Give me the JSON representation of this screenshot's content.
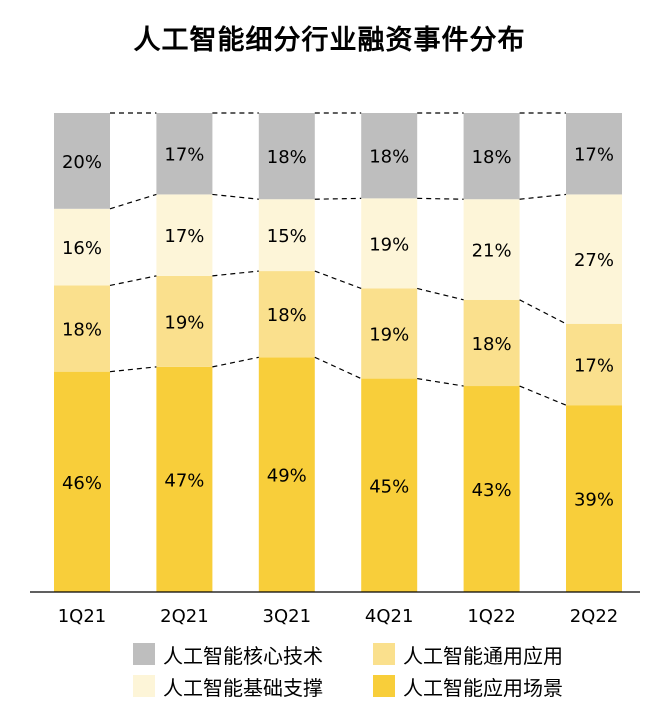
{
  "chart_data": {
    "type": "bar",
    "stacked": true,
    "percent": true,
    "title": "人工智能细分行业融资事件分布",
    "categories": [
      "1Q21",
      "2Q21",
      "3Q21",
      "4Q21",
      "1Q22",
      "2Q22"
    ],
    "series": [
      {
        "name": "人工智能应用场景",
        "color": "#F8CE3A",
        "values": [
          46,
          47,
          49,
          45,
          43,
          39
        ]
      },
      {
        "name": "人工智能通用应用",
        "color": "#FAE08D",
        "values": [
          18,
          19,
          18,
          19,
          18,
          17
        ]
      },
      {
        "name": "人工智能基础支撑",
        "color": "#FDF5D8",
        "values": [
          16,
          17,
          15,
          19,
          21,
          27
        ]
      },
      {
        "name": "人工智能核心技术",
        "color": "#BEBEBE",
        "values": [
          20,
          17,
          18,
          18,
          18,
          17
        ]
      }
    ],
    "value_suffix": "%",
    "legend_position": "bottom",
    "legend_order": [
      "人工智能核心技术",
      "人工智能通用应用",
      "人工智能基础支撑",
      "人工智能应用场景"
    ],
    "connector_lines": "dashed",
    "grid": false
  }
}
